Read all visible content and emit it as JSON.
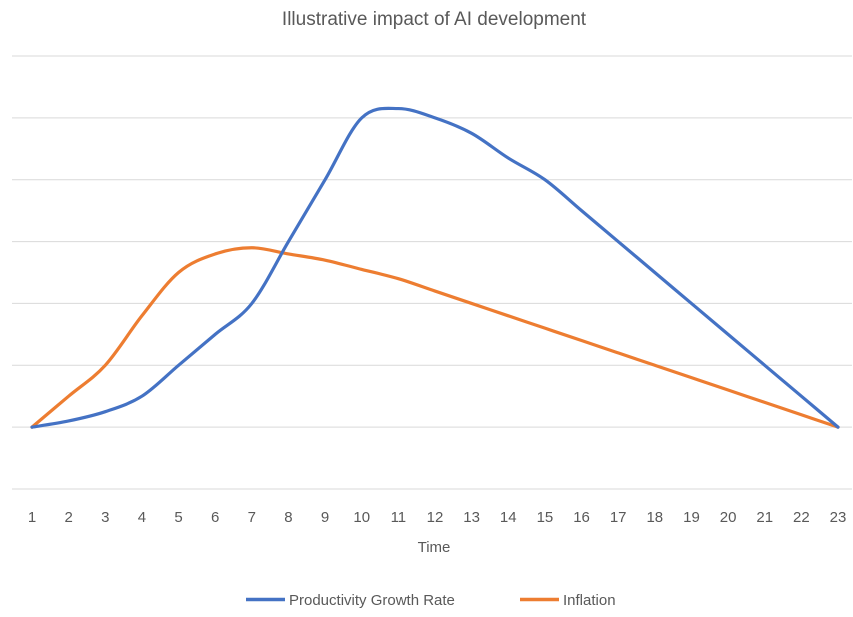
{
  "chart_data": {
    "type": "line",
    "title": "Illustrative impact of AI development",
    "xlabel": "Time",
    "ylabel": "",
    "x": [
      1,
      2,
      3,
      4,
      5,
      6,
      7,
      8,
      9,
      10,
      11,
      12,
      13,
      14,
      15,
      16,
      17,
      18,
      19,
      20,
      21,
      22,
      23
    ],
    "ylim": [
      -1,
      6
    ],
    "y_gridlines": [
      -1,
      0,
      1,
      2,
      3,
      4,
      5,
      6
    ],
    "y_tick_labels_shown": false,
    "legend_position": "bottom",
    "series": [
      {
        "name": "Productivity Growth Rate",
        "color": "#4472C4",
        "values": [
          0,
          0.1,
          0.25,
          0.5,
          1.0,
          1.5,
          2.0,
          3.0,
          4.0,
          5.0,
          5.15,
          5.0,
          4.75,
          4.35,
          4.0,
          3.5,
          3.0,
          2.5,
          2.0,
          1.5,
          1.0,
          0.5,
          0
        ]
      },
      {
        "name": "Inflation",
        "color": "#ED7D31",
        "values": [
          0,
          0.5,
          1.0,
          1.8,
          2.5,
          2.8,
          2.9,
          2.8,
          2.7,
          2.55,
          2.4,
          2.2,
          2.0,
          1.8,
          1.6,
          1.4,
          1.2,
          1.0,
          0.8,
          0.6,
          0.4,
          0.2,
          0
        ]
      }
    ]
  },
  "colors": {
    "gridline": "#d9d9d9",
    "text": "#595959"
  }
}
